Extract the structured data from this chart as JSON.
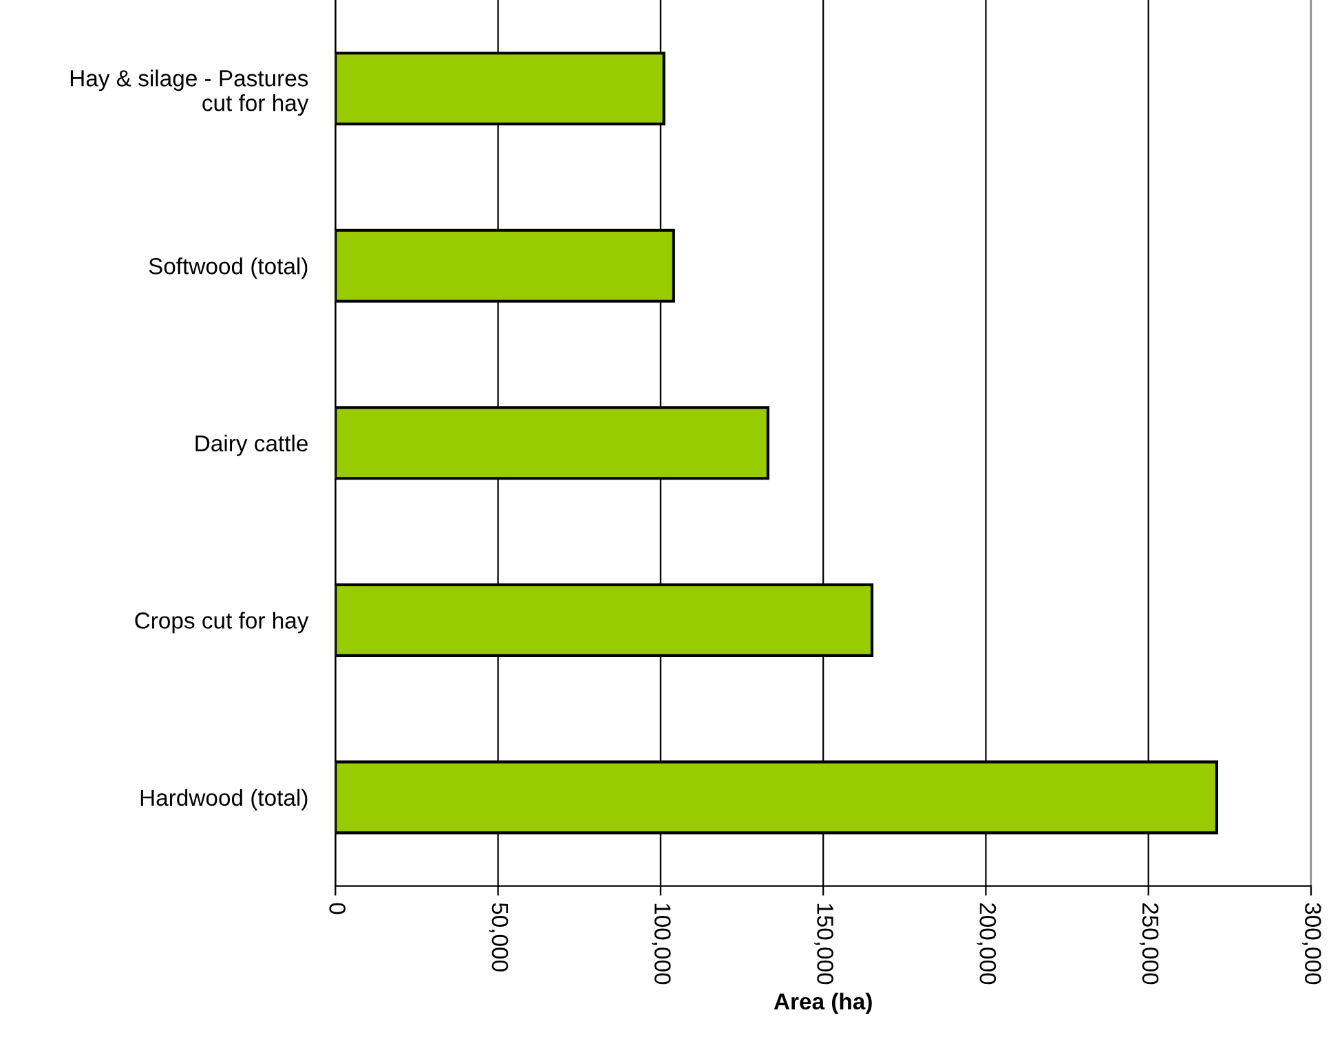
{
  "chart_data": {
    "type": "bar",
    "orientation": "horizontal",
    "xlabel": "Area (ha)",
    "categories": [
      "Hay & silage - Pastures\ncut for hay",
      "Softwood (total)",
      "Dairy cattle",
      "Crops cut for hay",
      "Hardwood (total)"
    ],
    "values": [
      101000,
      104000,
      133000,
      165000,
      271000
    ],
    "color": "#99cc00",
    "xlim": [
      0,
      300000
    ],
    "xticks": [
      0,
      {
        "value": 50000,
        "label": "50,000"
      },
      {
        "value": 100000,
        "label": "100,000"
      },
      {
        "value": 150000,
        "label": "150,000"
      },
      {
        "value": 200000,
        "label": "200,000"
      },
      {
        "value": 250000,
        "label": "250,000"
      },
      {
        "value": 300000,
        "label": "300,000"
      }
    ],
    "grid": "x",
    "legend": false
  }
}
